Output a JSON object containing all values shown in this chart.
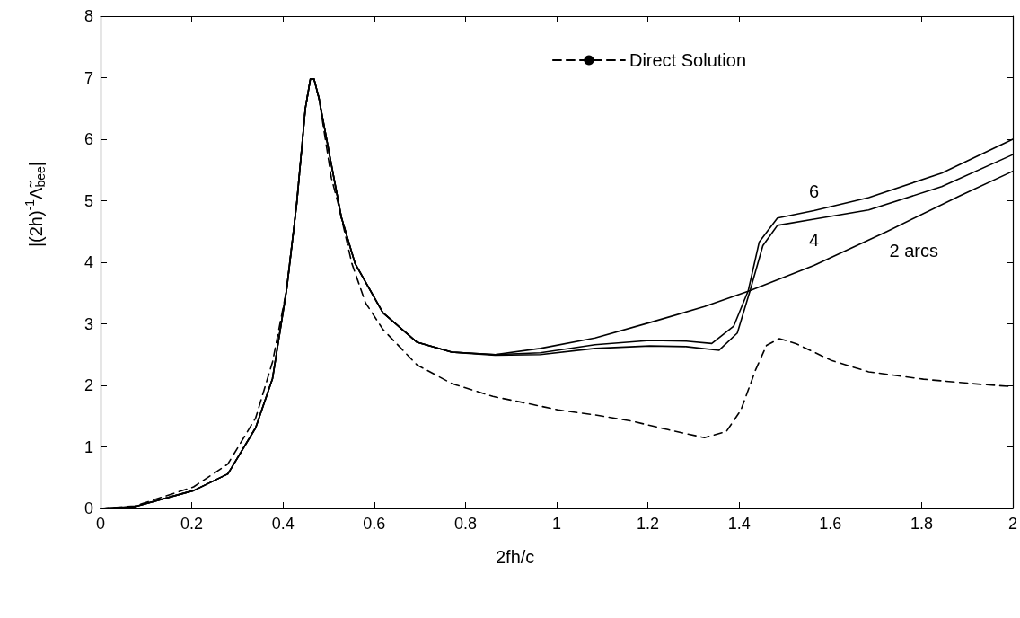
{
  "chart_data": {
    "type": "line",
    "xlabel": "2fh/c",
    "ylabel": "|(2h)$^{-1}$Λ̃$_{bee}$|",
    "xlim": [
      0,
      2
    ],
    "xticks": [
      0,
      0.2,
      0.4,
      0.6,
      0.8,
      1,
      1.2,
      1.4,
      1.6,
      1.8,
      2
    ],
    "ylim": [
      0,
      8
    ],
    "yticks": [
      0,
      1,
      2,
      3,
      4,
      5,
      6,
      7,
      8
    ],
    "grid": false,
    "legend": "top right",
    "marker": "none",
    "series": [
      {
        "name": "Direct Solution",
        "color": "#000000",
        "line_style": "dashed",
        "x": [
          0,
          0.075,
          0.204,
          0.279,
          0.34,
          0.377,
          0.408,
          0.43,
          0.449,
          0.46,
          0.468,
          0.479,
          0.506,
          0.521,
          0.551,
          0.581,
          0.619,
          0.694,
          0.77,
          0.86,
          0.94,
          1.004,
          1.084,
          1.164,
          1.244,
          1.324,
          1.372,
          1.404,
          1.436,
          1.46,
          1.488,
          1.524,
          1.604,
          1.684,
          1.804,
          1.924,
          2
        ],
        "values": [
          0,
          0.04,
          0.35,
          0.72,
          1.47,
          2.38,
          3.56,
          4.95,
          6.5,
          6.98,
          6.98,
          6.66,
          5.37,
          4.95,
          3.98,
          3.34,
          2.91,
          2.33,
          2.03,
          1.82,
          1.7,
          1.6,
          1.52,
          1.42,
          1.28,
          1.15,
          1.25,
          1.6,
          2.25,
          2.65,
          2.76,
          2.68,
          2.4,
          2.22,
          2.1,
          2.02,
          1.98
        ]
      },
      {
        "name": "2 arcs",
        "color": "#000000",
        "line_style": "solid",
        "x": [
          0,
          0.075,
          0.204,
          0.279,
          0.34,
          0.377,
          0.408,
          0.43,
          0.449,
          0.46,
          0.468,
          0.479,
          0.506,
          0.528,
          0.558,
          0.619,
          0.694,
          0.77,
          0.865,
          0.964,
          1.084,
          1.204,
          1.324,
          1.424,
          1.564,
          1.724,
          1.884,
          2
        ],
        "values": [
          0,
          0.03,
          0.29,
          0.56,
          1.31,
          2.11,
          3.56,
          4.95,
          6.5,
          6.98,
          6.98,
          6.66,
          5.59,
          4.73,
          3.98,
          3.18,
          2.7,
          2.54,
          2.5,
          2.6,
          2.77,
          3.02,
          3.28,
          3.54,
          3.95,
          4.5,
          5.08,
          5.48
        ]
      },
      {
        "name": "4",
        "color": "#000000",
        "line_style": "solid",
        "x": [
          0,
          0.075,
          0.204,
          0.279,
          0.34,
          0.377,
          0.408,
          0.43,
          0.449,
          0.46,
          0.468,
          0.479,
          0.506,
          0.528,
          0.558,
          0.619,
          0.694,
          0.77,
          0.865,
          0.964,
          1.084,
          1.204,
          1.284,
          1.356,
          1.396,
          1.424,
          1.452,
          1.484,
          1.564,
          1.684,
          1.844,
          2
        ],
        "values": [
          0,
          0.03,
          0.29,
          0.56,
          1.31,
          2.11,
          3.56,
          4.95,
          6.5,
          6.98,
          6.98,
          6.66,
          5.59,
          4.73,
          3.98,
          3.18,
          2.7,
          2.54,
          2.49,
          2.5,
          2.6,
          2.64,
          2.63,
          2.57,
          2.85,
          3.54,
          4.27,
          4.6,
          4.7,
          4.85,
          5.23,
          5.75
        ]
      },
      {
        "name": "6",
        "color": "#000000",
        "line_style": "solid",
        "x": [
          0,
          0.075,
          0.204,
          0.279,
          0.34,
          0.377,
          0.408,
          0.43,
          0.449,
          0.46,
          0.468,
          0.479,
          0.506,
          0.528,
          0.558,
          0.619,
          0.694,
          0.77,
          0.865,
          0.964,
          1.084,
          1.204,
          1.284,
          1.34,
          1.388,
          1.42,
          1.444,
          1.484,
          1.564,
          1.684,
          1.844,
          2
        ],
        "values": [
          0,
          0.03,
          0.29,
          0.56,
          1.31,
          2.11,
          3.56,
          4.95,
          6.5,
          6.98,
          6.98,
          6.66,
          5.59,
          4.73,
          3.98,
          3.18,
          2.7,
          2.54,
          2.5,
          2.53,
          2.66,
          2.73,
          2.72,
          2.68,
          2.96,
          3.54,
          4.33,
          4.72,
          4.84,
          5.05,
          5.45,
          6.0
        ]
      }
    ]
  }
}
